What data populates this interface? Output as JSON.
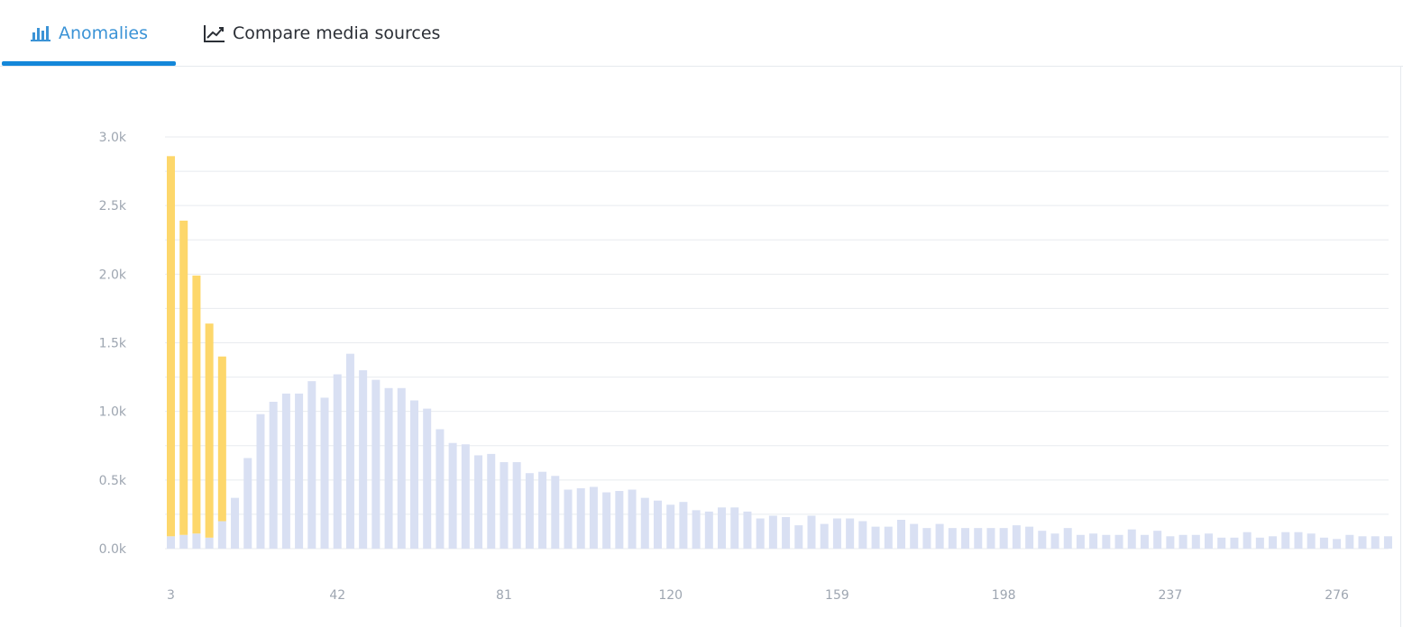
{
  "tabs": [
    {
      "label": "Anomalies",
      "icon": "bar-chart-icon",
      "active": true
    },
    {
      "label": "Compare media sources",
      "icon": "line-chart-icon",
      "active": false
    }
  ],
  "colors": {
    "accent": "#1487d9",
    "active_tab_text": "#3b93d6",
    "anomaly": "#fdd76b",
    "normal": "#d9e0f3",
    "grid": "#e8ebef",
    "tick": "#9ea6b1"
  },
  "chart_data": {
    "type": "bar",
    "stacked": true,
    "grid": true,
    "ylim": [
      0,
      3000
    ],
    "yticks": [
      "0.0k",
      "0.5k",
      "1.0k",
      "1.5k",
      "2.0k",
      "2.5k",
      "3.0k"
    ],
    "xticks": [
      "3",
      "42",
      "81",
      "120",
      "159",
      "198",
      "237",
      "276"
    ],
    "x_start": 3,
    "x_step": 3,
    "series": [
      {
        "role": "baseline",
        "values": [
          90,
          100,
          110,
          80,
          200,
          370,
          660,
          980,
          1070,
          1130,
          1130,
          1220,
          1100,
          1270,
          1420,
          1300,
          1230,
          1170,
          1170,
          1080,
          1020,
          870,
          770,
          760,
          680,
          690,
          630,
          630,
          550,
          560,
          530,
          430,
          440,
          450,
          410,
          420,
          430,
          370,
          350,
          320,
          340,
          280,
          270,
          300,
          300,
          270,
          220,
          240,
          230,
          170,
          240,
          180,
          220,
          220,
          200,
          160,
          160,
          210,
          180,
          150,
          180,
          150,
          150,
          150,
          150,
          150,
          170,
          160,
          130,
          110,
          150,
          100,
          110,
          100,
          100,
          140,
          100,
          130,
          90,
          100,
          100,
          110,
          80,
          80,
          120,
          80,
          90,
          120,
          120,
          110,
          80,
          70,
          100,
          90,
          90,
          90
        ]
      },
      {
        "role": "anomaly",
        "values": [
          2770,
          2290,
          1880,
          1560,
          1200,
          0,
          0,
          0,
          0,
          0,
          0,
          0,
          0,
          0,
          0,
          0,
          0,
          0,
          0,
          0,
          0,
          0,
          0,
          0,
          0,
          0,
          0,
          0,
          0,
          0,
          0,
          0,
          0,
          0,
          0,
          0,
          0,
          0,
          0,
          0,
          0,
          0,
          0,
          0,
          0,
          0,
          0,
          0,
          0,
          0,
          0,
          0,
          0,
          0,
          0,
          0,
          0,
          0,
          0,
          0,
          0,
          0,
          0,
          0,
          0,
          0,
          0,
          0,
          0,
          0,
          0,
          0,
          0,
          0,
          0,
          0,
          0,
          0,
          0,
          0,
          0,
          0,
          0,
          0,
          0,
          0,
          0,
          0,
          0,
          0,
          0,
          0,
          0,
          0,
          0,
          0
        ]
      }
    ]
  }
}
